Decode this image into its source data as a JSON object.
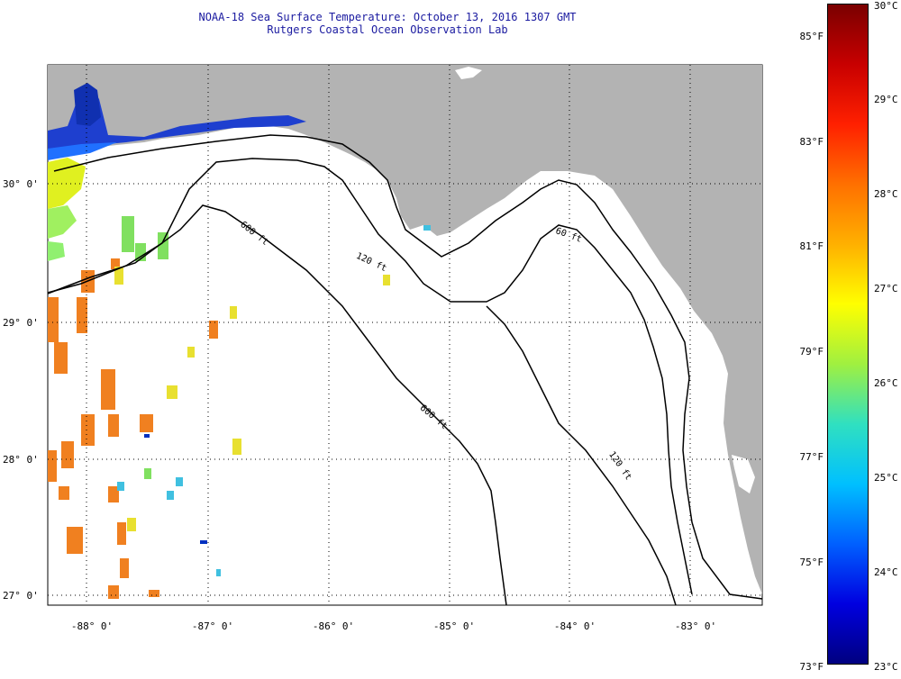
{
  "title_line1": "NOAA-18 Sea Surface Temperature:  October 13, 2016 1307 GMT",
  "title_line2": "Rutgers Coastal Ocean Observation Lab",
  "map": {
    "lat_labels": [
      {
        "text": "30° 0'",
        "lat": 30.0
      },
      {
        "text": "29° 0'",
        "lat": 29.0
      },
      {
        "text": "28° 0'",
        "lat": 28.0
      },
      {
        "text": "27° 0'",
        "lat": 27.0
      }
    ],
    "lon_labels": [
      {
        "text": "-88° 0'",
        "lon": -88.0
      },
      {
        "text": "-87° 0'",
        "lon": -87.0
      },
      {
        "text": "-86° 0'",
        "lon": -86.0
      },
      {
        "text": "-85° 0'",
        "lon": -85.0
      },
      {
        "text": "-84° 0'",
        "lon": -84.0
      },
      {
        "text": "-83° 0'",
        "lon": -83.0
      }
    ],
    "depth_labels": [
      "600 ft",
      "120 ft",
      "600 ft",
      "60 ft",
      "120 ft"
    ],
    "colors": {
      "land": "#b3b3b3",
      "water": "#ffffff",
      "contour": "#000000",
      "grid_dots": "#000000"
    }
  },
  "colorbar": {
    "min_c": 23,
    "max_c": 30,
    "fahrenheit_labels": [
      "85°F",
      "83°F",
      "81°F",
      "79°F",
      "77°F",
      "75°F",
      "73°F"
    ],
    "celsius_labels": [
      "30°C",
      "29°C",
      "28°C",
      "27°C",
      "26°C",
      "25°C",
      "24°C",
      "23°C"
    ],
    "gradient": [
      "#7a0000",
      "#c80000",
      "#ff2000",
      "#ff7000",
      "#ffb000",
      "#ffff00",
      "#a0f040",
      "#30e0c0",
      "#00c0ff",
      "#0060ff",
      "#0000e0",
      "#000080"
    ]
  }
}
